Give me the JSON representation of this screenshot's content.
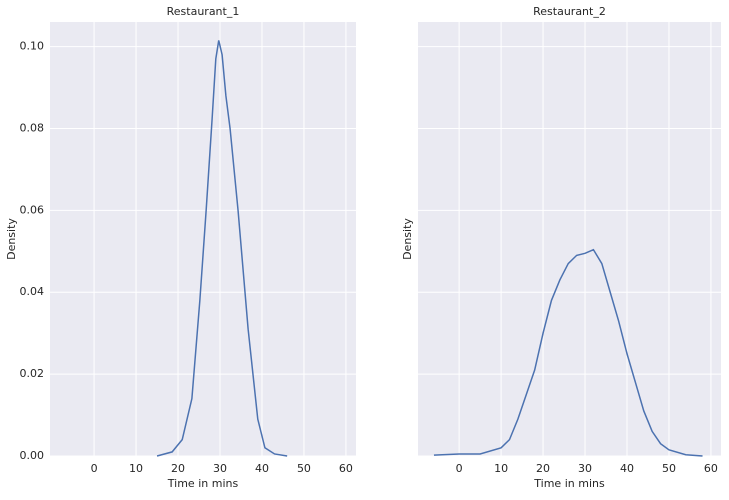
{
  "chart_data": [
    {
      "type": "line",
      "title": "Restaurant_1",
      "xlabel": "Time in mins",
      "ylabel": "Density",
      "color": "#4c72b0",
      "x": [
        15,
        18.6,
        21,
        23.3,
        25.2,
        26.7,
        28.1,
        29,
        29.7,
        30.5,
        31.4,
        32.4,
        34.3,
        36.7,
        39,
        40.7,
        43,
        46
      ],
      "values": [
        0,
        0.001,
        0.004,
        0.014,
        0.038,
        0.06,
        0.082,
        0.097,
        0.1015,
        0.098,
        0.088,
        0.08,
        0.06,
        0.031,
        0.009,
        0.002,
        0.0005,
        0
      ],
      "xlim": [
        -10.5,
        62.4
      ],
      "xticks": [
        0,
        10,
        20,
        30,
        40,
        50,
        60
      ],
      "ylim": [
        0,
        0.106
      ],
      "yticks": [
        {
          "value": 0,
          "label": "0.00"
        },
        {
          "value": 0.02,
          "label": "0.02"
        },
        {
          "value": 0.04,
          "label": "0.04"
        },
        {
          "value": 0.06,
          "label": "0.06"
        },
        {
          "value": 0.08,
          "label": "0.08"
        },
        {
          "value": 0.1,
          "label": "0.10"
        }
      ],
      "grid": true,
      "show_ytick_labels": true
    },
    {
      "type": "line",
      "title": "Restaurant_2",
      "xlabel": "Time in mins",
      "ylabel": "Density",
      "color": "#4c72b0",
      "x": [
        -6,
        0,
        5,
        10,
        12,
        14,
        16,
        18,
        20,
        22,
        24,
        26,
        28,
        30,
        32,
        34,
        36,
        38,
        40,
        42,
        44,
        46,
        48,
        50,
        54,
        58
      ],
      "values": [
        0.0002,
        0.0005,
        0.0005,
        0.002,
        0.004,
        0.009,
        0.015,
        0.021,
        0.03,
        0.038,
        0.043,
        0.047,
        0.049,
        0.0495,
        0.0504,
        0.047,
        0.04,
        0.033,
        0.025,
        0.018,
        0.011,
        0.006,
        0.003,
        0.0015,
        0.0003,
        0
      ],
      "xlim": [
        -9.8,
        62.4
      ],
      "xticks": [
        0,
        10,
        20,
        30,
        40,
        50,
        60
      ],
      "ylim": [
        0,
        0.106
      ],
      "yticks": [
        0,
        0.02,
        0.04,
        0.06,
        0.08,
        0.1
      ],
      "grid": true,
      "show_ytick_labels": false
    }
  ]
}
